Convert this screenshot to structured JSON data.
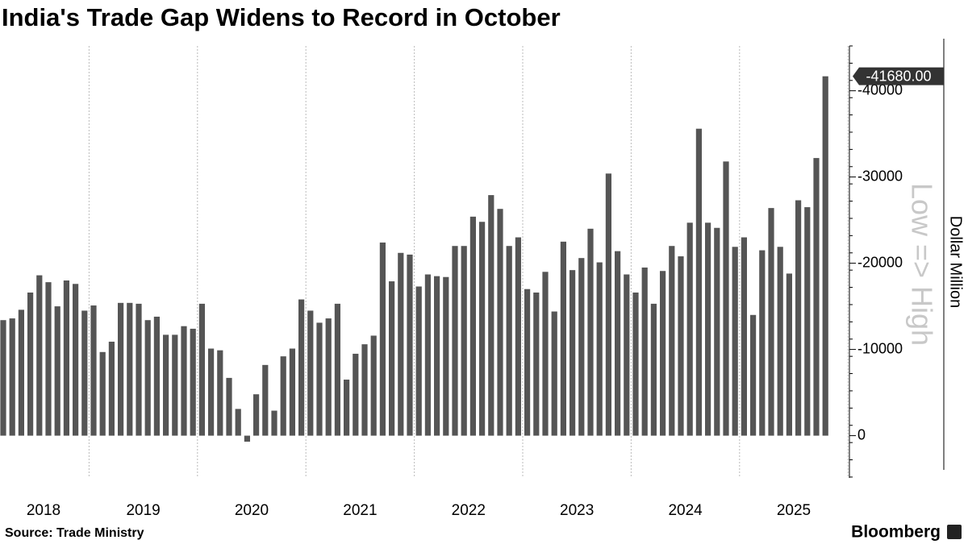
{
  "chart_data": {
    "type": "bar",
    "title": "India's Trade Gap Widens to Record in October",
    "y_label": "Dollar Million",
    "direction_note": "Low => High",
    "source": "Source: Trade Ministry",
    "brand": "Bloomberg",
    "color": "#555555",
    "categories": [
      null,
      null,
      null,
      null,
      null,
      null,
      null,
      null,
      null,
      null,
      null,
      null,
      null,
      null,
      null,
      null,
      null,
      null,
      null,
      null,
      null,
      null,
      null,
      null,
      null,
      null,
      null,
      null,
      null,
      null,
      null,
      null,
      null,
      null,
      null,
      null,
      null,
      null,
      null,
      null,
      null,
      null,
      null,
      null,
      null,
      null,
      null,
      null,
      null,
      null,
      null,
      null,
      null,
      null,
      null,
      null,
      null,
      null,
      null,
      null,
      null,
      null,
      null,
      null,
      null,
      null,
      null,
      null,
      null,
      null,
      null,
      null,
      null,
      null,
      null,
      null,
      null,
      null,
      null,
      null,
      null,
      null,
      null,
      null,
      null,
      null,
      null,
      null,
      null,
      null,
      null,
      null
    ],
    "values": [
      -13400,
      -13600,
      -14600,
      -16600,
      -18600,
      -17800,
      -15000,
      -18000,
      -17600,
      -14500,
      -15100,
      -9700,
      -10900,
      -15400,
      -15400,
      -15300,
      -13400,
      -13800,
      -11700,
      -11700,
      -12700,
      -12400,
      -15300,
      -10100,
      -9900,
      -6700,
      -3100,
      700,
      -4800,
      -8200,
      -2900,
      -9200,
      -10100,
      -15800,
      -14500,
      -13100,
      -13600,
      -15300,
      -6500,
      -9500,
      -10600,
      -11600,
      -22400,
      -17900,
      -21200,
      -21000,
      -17300,
      -18700,
      -18500,
      -18400,
      -22000,
      -22000,
      -25400,
      -24800,
      -27900,
      -26300,
      -22000,
      -23000,
      -17000,
      -16600,
      -19000,
      -14400,
      -22500,
      -19200,
      -20600,
      -24000,
      -20100,
      -30400,
      -21400,
      -18700,
      -16600,
      -19500,
      -15300,
      -19100,
      -22000,
      -20800,
      -24700,
      -35600,
      -24700,
      -24100,
      -31800,
      -21900,
      -23000,
      -14000,
      -21500,
      -26400,
      -21900,
      -18800,
      -27300,
      -26500,
      -32200,
      -41680
    ],
    "last_value_label": "-41680.00",
    "xticks": [
      "2018",
      "2019",
      "2020",
      "2021",
      "2022",
      "2023",
      "2024",
      "2025"
    ],
    "ylim": [
      4900,
      -45200
    ],
    "yticks": [
      -40000,
      -30000,
      -20000,
      -10000,
      0
    ],
    "y_inverted": true
  }
}
